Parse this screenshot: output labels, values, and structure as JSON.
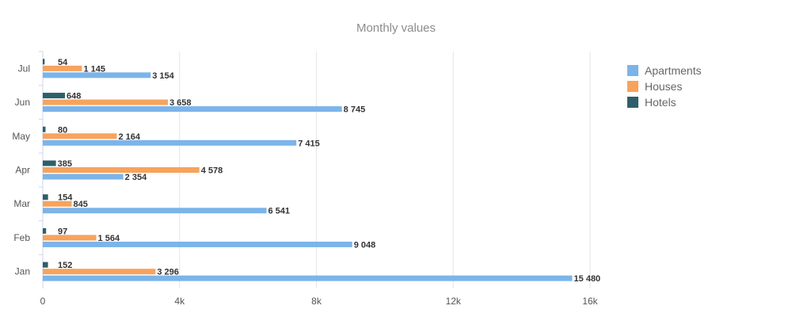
{
  "chart_data": {
    "type": "bar",
    "orientation": "horizontal",
    "title": "Monthly values",
    "categories": [
      "Jan",
      "Feb",
      "Mar",
      "Apr",
      "May",
      "Jun",
      "Jul"
    ],
    "series": [
      {
        "name": "Apartments",
        "values": [
          15480,
          9048,
          6541,
          2354,
          7415,
          8745,
          3154
        ],
        "labels": [
          "15 480",
          "9 048",
          "6 541",
          "2 354",
          "7 415",
          "8 745",
          "3 154"
        ],
        "color": "#7cb4ea"
      },
      {
        "name": "Houses",
        "values": [
          3296,
          1564,
          845,
          4578,
          2164,
          3658,
          1145
        ],
        "labels": [
          "3 296",
          "1 564",
          "845",
          "4 578",
          "2 164",
          "3 658",
          "1 145"
        ],
        "color": "#f7a35c"
      },
      {
        "name": "Hotels",
        "values": [
          152,
          97,
          154,
          385,
          80,
          648,
          54
        ],
        "labels": [
          "152",
          "97",
          "154",
          "385",
          "80",
          "648",
          "54"
        ],
        "color": "#2d5f6a"
      }
    ],
    "xlim": [
      0,
      16000
    ],
    "xticks": [
      0,
      4000,
      8000,
      12000,
      16000
    ],
    "xtick_labels": [
      "0",
      "4k",
      "8k",
      "12k",
      "16k"
    ],
    "grid": "vertical",
    "legend_position": "top-right"
  }
}
